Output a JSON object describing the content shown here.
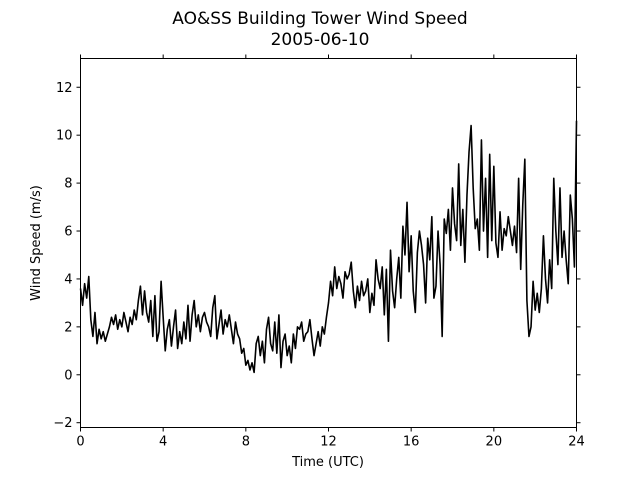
{
  "chart_data": {
    "type": "line",
    "title": "AO&SS Building Tower Wind Speed",
    "subtitle": "2005-06-10",
    "xlabel": "Time (UTC)",
    "ylabel": "Wind Speed (m/s)",
    "xlim": [
      0,
      24
    ],
    "ylim": [
      -2.2,
      13.2
    ],
    "xticks": [
      0,
      4,
      8,
      12,
      16,
      20,
      24
    ],
    "yticks": [
      -2,
      0,
      2,
      4,
      6,
      8,
      10,
      12
    ],
    "grid": false,
    "series": [
      {
        "color": "#000000",
        "x": [
          0.0,
          0.1,
          0.2,
          0.3,
          0.4,
          0.5,
          0.6,
          0.7,
          0.8,
          0.9,
          1.0,
          1.1,
          1.2,
          1.3,
          1.4,
          1.5,
          1.6,
          1.7,
          1.8,
          1.9,
          2.0,
          2.1,
          2.2,
          2.3,
          2.4,
          2.5,
          2.6,
          2.7,
          2.8,
          2.9,
          3.0,
          3.1,
          3.2,
          3.3,
          3.4,
          3.5,
          3.6,
          3.7,
          3.8,
          3.9,
          4.0,
          4.1,
          4.2,
          4.3,
          4.4,
          4.5,
          4.6,
          4.7,
          4.8,
          4.9,
          5.0,
          5.1,
          5.2,
          5.3,
          5.4,
          5.5,
          5.6,
          5.7,
          5.8,
          5.9,
          6.0,
          6.1,
          6.2,
          6.3,
          6.4,
          6.5,
          6.6,
          6.7,
          6.8,
          6.9,
          7.0,
          7.1,
          7.2,
          7.3,
          7.4,
          7.5,
          7.6,
          7.7,
          7.8,
          7.9,
          8.0,
          8.1,
          8.2,
          8.3,
          8.4,
          8.5,
          8.6,
          8.7,
          8.8,
          8.9,
          9.0,
          9.1,
          9.2,
          9.3,
          9.4,
          9.5,
          9.6,
          9.7,
          9.8,
          9.9,
          10.0,
          10.1,
          10.2,
          10.3,
          10.4,
          10.5,
          10.6,
          10.7,
          10.8,
          10.9,
          11.0,
          11.1,
          11.2,
          11.3,
          11.4,
          11.5,
          11.6,
          11.7,
          11.8,
          11.9,
          12.0,
          12.1,
          12.2,
          12.3,
          12.4,
          12.5,
          12.6,
          12.7,
          12.8,
          12.9,
          13.0,
          13.1,
          13.2,
          13.3,
          13.4,
          13.5,
          13.6,
          13.7,
          13.8,
          13.9,
          14.0,
          14.1,
          14.2,
          14.3,
          14.4,
          14.5,
          14.6,
          14.7,
          14.8,
          14.9,
          15.0,
          15.1,
          15.2,
          15.3,
          15.4,
          15.5,
          15.6,
          15.7,
          15.8,
          15.9,
          16.0,
          16.1,
          16.2,
          16.3,
          16.4,
          16.5,
          16.6,
          16.7,
          16.8,
          16.9,
          17.0,
          17.1,
          17.2,
          17.3,
          17.4,
          17.5,
          17.6,
          17.7,
          17.8,
          17.9,
          18.0,
          18.1,
          18.2,
          18.3,
          18.4,
          18.5,
          18.6,
          18.7,
          18.8,
          18.9,
          19.0,
          19.1,
          19.2,
          19.3,
          19.4,
          19.5,
          19.6,
          19.7,
          19.8,
          19.9,
          20.0,
          20.1,
          20.2,
          20.3,
          20.4,
          20.5,
          20.6,
          20.7,
          20.8,
          20.9,
          21.0,
          21.1,
          21.2,
          21.3,
          21.4,
          21.5,
          21.6,
          21.7,
          21.8,
          21.9,
          22.0,
          22.1,
          22.2,
          22.3,
          22.4,
          22.5,
          22.6,
          22.7,
          22.8,
          22.9,
          23.0,
          23.1,
          23.2,
          23.3,
          23.4,
          23.5,
          23.6,
          23.7,
          23.8,
          23.9,
          24.0
        ],
        "y": [
          3.6,
          2.9,
          3.8,
          3.2,
          4.1,
          2.3,
          1.6,
          2.6,
          1.3,
          1.9,
          1.5,
          1.8,
          1.4,
          1.7,
          2.0,
          2.4,
          2.1,
          2.5,
          1.9,
          2.3,
          2.0,
          2.6,
          2.2,
          1.8,
          2.4,
          2.1,
          2.7,
          2.3,
          3.1,
          3.7,
          2.5,
          3.5,
          2.6,
          2.2,
          3.1,
          1.6,
          3.3,
          1.4,
          1.8,
          3.9,
          2.4,
          1.0,
          1.9,
          2.3,
          1.2,
          2.0,
          2.7,
          1.1,
          1.8,
          1.3,
          2.2,
          1.5,
          2.9,
          1.4,
          2.5,
          3.1,
          2.0,
          2.5,
          1.8,
          2.4,
          2.6,
          2.2,
          2.0,
          1.6,
          2.8,
          3.3,
          1.5,
          2.1,
          2.7,
          1.7,
          2.3,
          2.0,
          2.5,
          1.9,
          1.3,
          2.2,
          1.7,
          1.5,
          0.9,
          1.1,
          0.4,
          0.6,
          0.2,
          0.5,
          0.1,
          1.3,
          1.6,
          0.8,
          1.4,
          0.5,
          1.9,
          2.4,
          1.3,
          1.0,
          2.2,
          0.9,
          2.5,
          0.3,
          1.4,
          1.7,
          0.8,
          1.2,
          0.5,
          1.7,
          1.1,
          2.0,
          1.9,
          2.2,
          1.4,
          1.7,
          1.8,
          2.3,
          1.5,
          0.8,
          1.3,
          1.8,
          1.2,
          2.0,
          1.7,
          2.4,
          3.0,
          3.9,
          3.3,
          4.5,
          3.6,
          4.1,
          3.8,
          3.2,
          4.3,
          4.0,
          4.2,
          4.7,
          3.5,
          2.8,
          3.7,
          3.1,
          3.9,
          3.3,
          3.5,
          4.0,
          2.6,
          3.4,
          2.9,
          4.8,
          4.0,
          3.6,
          4.5,
          2.5,
          4.4,
          1.4,
          5.2,
          3.5,
          2.8,
          4.0,
          4.9,
          3.2,
          6.2,
          5.0,
          7.2,
          4.3,
          5.8,
          3.5,
          2.6,
          5.1,
          6.0,
          5.4,
          4.6,
          3.0,
          5.7,
          4.8,
          6.6,
          3.2,
          3.7,
          6.0,
          4.6,
          1.6,
          6.5,
          5.9,
          6.9,
          5.2,
          7.8,
          6.3,
          5.6,
          8.8,
          5.4,
          6.9,
          4.7,
          7.5,
          9.3,
          10.4,
          7.8,
          6.1,
          6.5,
          5.2,
          9.8,
          6.0,
          8.2,
          4.9,
          9.2,
          5.6,
          8.7,
          5.5,
          4.9,
          6.8,
          5.2,
          6.1,
          5.8,
          6.6,
          6.0,
          5.4,
          6.2,
          5.1,
          8.2,
          4.4,
          7.1,
          9.0,
          3.1,
          1.6,
          2.0,
          3.9,
          2.7,
          3.4,
          2.6,
          3.6,
          5.8,
          4.0,
          3.0,
          4.8,
          3.6,
          8.2,
          6.0,
          4.6,
          7.8,
          4.9,
          6.0,
          4.8,
          3.8,
          7.5,
          6.5,
          4.5,
          10.6
        ],
        "line": "solid"
      }
    ]
  }
}
